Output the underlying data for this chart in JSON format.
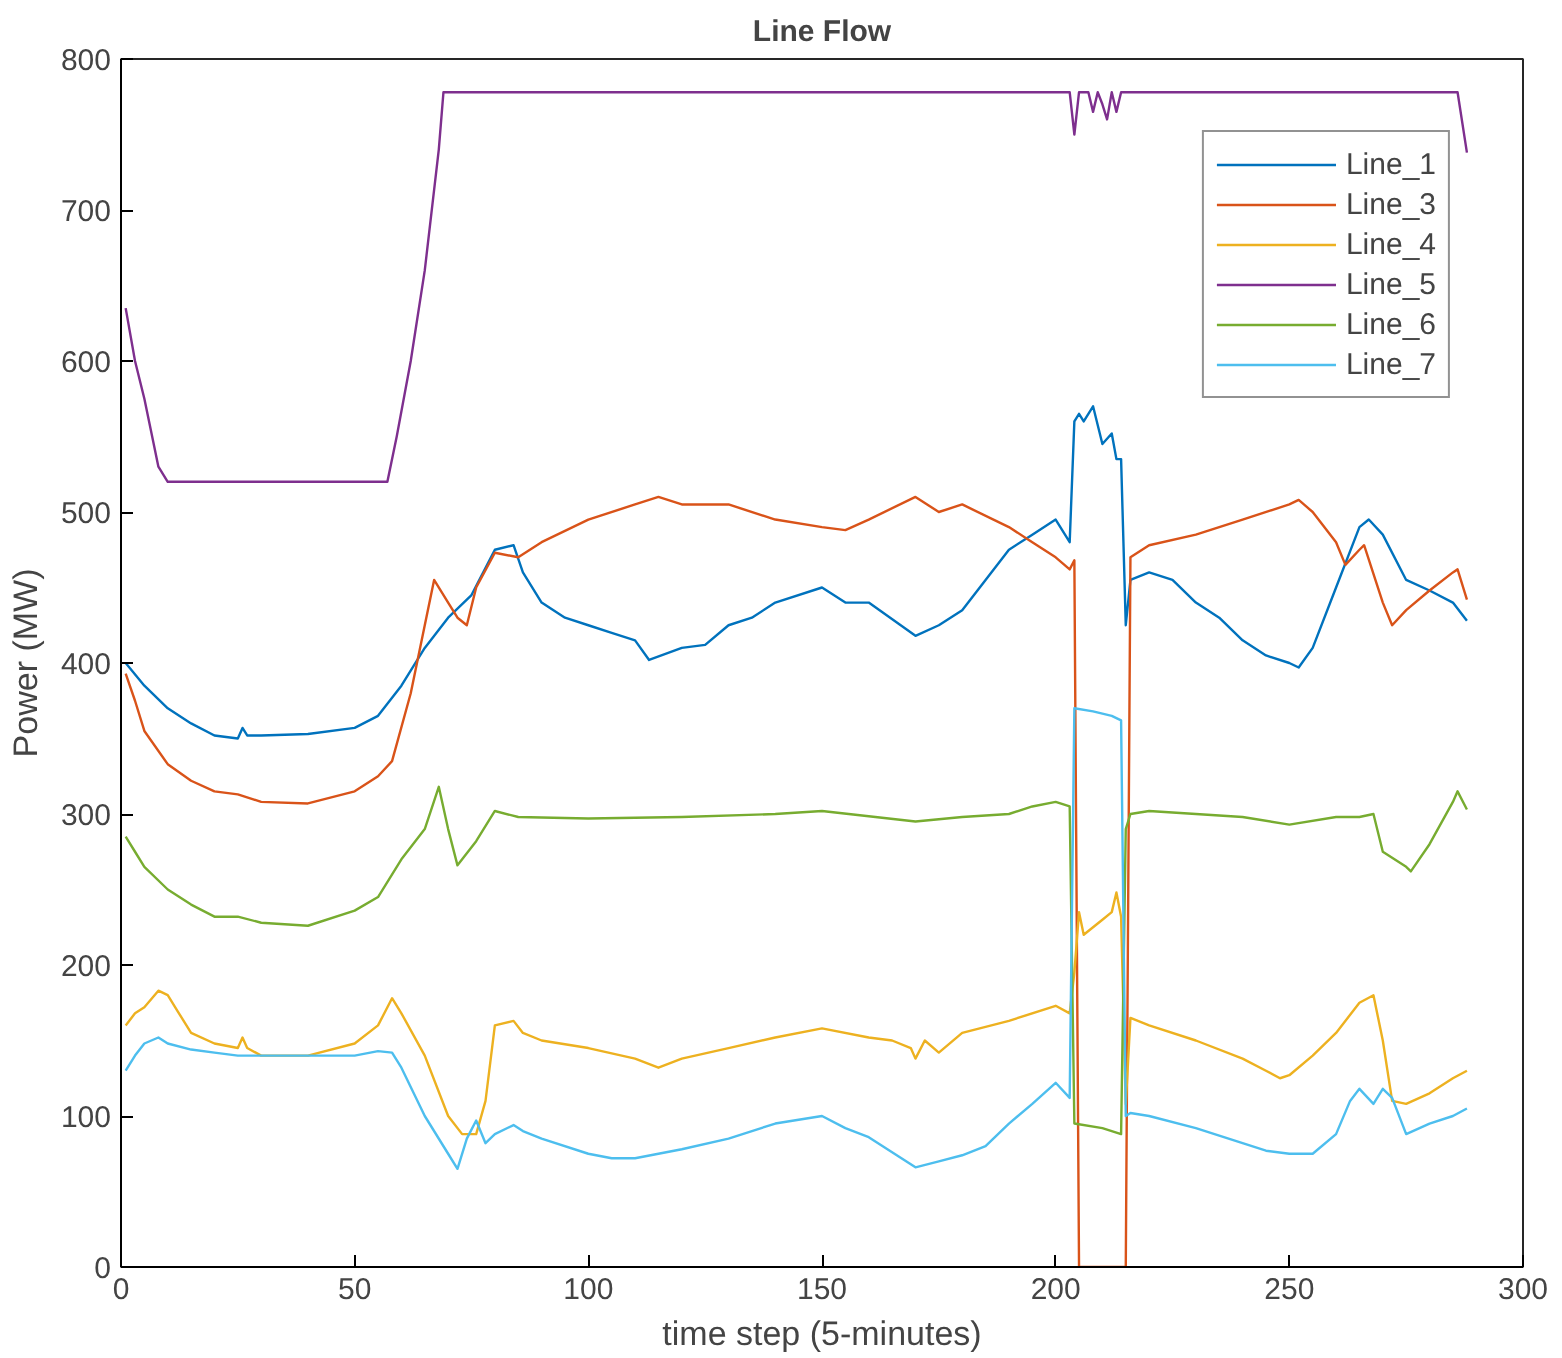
{
  "chart_data": {
    "type": "line",
    "title": "Line Flow",
    "xlabel": "time step (5-minutes)",
    "ylabel": "Power (MW)",
    "xlim": [
      0,
      300
    ],
    "ylim": [
      0,
      800
    ],
    "xticks": [
      0,
      50,
      100,
      150,
      200,
      250,
      300
    ],
    "yticks": [
      0,
      100,
      200,
      300,
      400,
      500,
      600,
      700,
      800
    ],
    "grid": false,
    "legend": "top right",
    "line_style": "solid",
    "marker": "none",
    "series": [
      {
        "name": "Line_1",
        "color": "#0072bd",
        "x": [
          1,
          5,
          10,
          15,
          20,
          25,
          26,
          27,
          30,
          40,
          50,
          55,
          60,
          65,
          70,
          75,
          80,
          84,
          86,
          90,
          95,
          100,
          105,
          110,
          113,
          120,
          125,
          130,
          135,
          140,
          150,
          155,
          160,
          170,
          175,
          180,
          185,
          190,
          195,
          200,
          203,
          204,
          205,
          206,
          208,
          210,
          212,
          213,
          214,
          215,
          216,
          220,
          225,
          230,
          235,
          240,
          245,
          250,
          252,
          255,
          260,
          265,
          267,
          270,
          275,
          280,
          285,
          288
        ],
        "values": [
          400,
          385,
          370,
          360,
          352,
          350,
          357,
          352,
          352,
          353,
          357,
          365,
          385,
          410,
          430,
          445,
          475,
          478,
          460,
          440,
          430,
          425,
          420,
          415,
          402,
          410,
          412,
          425,
          430,
          440,
          450,
          440,
          440,
          418,
          425,
          435,
          455,
          475,
          485,
          495,
          480,
          560,
          565,
          560,
          570,
          545,
          552,
          535,
          535,
          425,
          455,
          460,
          455,
          440,
          430,
          415,
          405,
          400,
          397,
          410,
          450,
          490,
          495,
          485,
          455,
          448,
          440,
          428
        ]
      },
      {
        "name": "Line_3",
        "color": "#d95319",
        "x": [
          1,
          3,
          5,
          10,
          15,
          20,
          25,
          30,
          40,
          50,
          55,
          58,
          62,
          65,
          67,
          70,
          72,
          74,
          76,
          80,
          85,
          90,
          100,
          110,
          115,
          120,
          130,
          140,
          150,
          155,
          160,
          170,
          175,
          180,
          190,
          195,
          200,
          203,
          204,
          205,
          215,
          216,
          220,
          230,
          240,
          250,
          252,
          255,
          260,
          262,
          265,
          266,
          270,
          272,
          275,
          280,
          285,
          286,
          288
        ],
        "values": [
          393,
          375,
          355,
          333,
          322,
          315,
          313,
          308,
          307,
          315,
          325,
          335,
          380,
          425,
          455,
          440,
          430,
          425,
          450,
          473,
          470,
          480,
          495,
          505,
          510,
          505,
          505,
          495,
          490,
          488,
          495,
          510,
          500,
          505,
          490,
          480,
          470,
          462,
          468,
          0,
          0,
          470,
          478,
          485,
          495,
          505,
          508,
          500,
          480,
          465,
          475,
          478,
          440,
          425,
          435,
          448,
          460,
          462,
          442
        ]
      },
      {
        "name": "Line_4",
        "color": "#edb120",
        "x": [
          1,
          3,
          5,
          8,
          10,
          12,
          15,
          20,
          25,
          26,
          27,
          30,
          35,
          40,
          50,
          55,
          58,
          60,
          65,
          70,
          73,
          76,
          78,
          80,
          84,
          86,
          90,
          100,
          110,
          115,
          120,
          130,
          140,
          150,
          160,
          165,
          169,
          170,
          172,
          175,
          180,
          190,
          200,
          203,
          204,
          205,
          206,
          208,
          210,
          212,
          213,
          214,
          215,
          216,
          220,
          230,
          240,
          245,
          248,
          250,
          255,
          260,
          265,
          268,
          270,
          272,
          275,
          280,
          285,
          288
        ],
        "values": [
          160,
          168,
          172,
          183,
          180,
          170,
          155,
          148,
          145,
          152,
          145,
          140,
          140,
          140,
          148,
          160,
          178,
          168,
          140,
          100,
          88,
          88,
          110,
          160,
          163,
          155,
          150,
          145,
          138,
          132,
          138,
          145,
          152,
          158,
          152,
          150,
          145,
          138,
          150,
          142,
          155,
          163,
          173,
          168,
          195,
          235,
          220,
          225,
          230,
          235,
          248,
          232,
          108,
          165,
          160,
          150,
          138,
          130,
          125,
          127,
          140,
          155,
          175,
          180,
          150,
          110,
          108,
          115,
          125,
          130
        ]
      },
      {
        "name": "Line_5",
        "color": "#7e2f8e",
        "x": [
          1,
          3,
          5,
          7,
          8,
          10,
          57,
          59,
          62,
          65,
          68,
          69,
          203,
          204,
          205,
          207,
          208,
          209,
          210,
          211,
          212,
          213,
          214,
          286,
          288
        ],
        "values": [
          635,
          600,
          575,
          545,
          530,
          520,
          520,
          550,
          600,
          660,
          740,
          778,
          778,
          750,
          778,
          778,
          765,
          778,
          770,
          760,
          778,
          765,
          778,
          778,
          738
        ]
      },
      {
        "name": "Line_6",
        "color": "#77ac30",
        "x": [
          1,
          3,
          5,
          10,
          15,
          20,
          25,
          30,
          40,
          50,
          55,
          60,
          65,
          68,
          70,
          72,
          76,
          80,
          85,
          100,
          120,
          140,
          150,
          170,
          180,
          190,
          195,
          200,
          203,
          204,
          210,
          214,
          215,
          216,
          220,
          240,
          250,
          260,
          265,
          268,
          270,
          275,
          276,
          280,
          285,
          286,
          288
        ],
        "values": [
          285,
          275,
          265,
          250,
          240,
          232,
          232,
          228,
          226,
          236,
          245,
          270,
          290,
          318,
          290,
          266,
          282,
          302,
          298,
          297,
          298,
          300,
          302,
          295,
          298,
          300,
          305,
          308,
          305,
          95,
          92,
          88,
          290,
          300,
          302,
          298,
          293,
          298,
          298,
          300,
          275,
          265,
          262,
          280,
          308,
          315,
          303
        ]
      },
      {
        "name": "Line_7",
        "color": "#4dbeee",
        "x": [
          1,
          3,
          5,
          8,
          10,
          15,
          20,
          25,
          30,
          40,
          50,
          55,
          58,
          60,
          65,
          70,
          72,
          74,
          76,
          78,
          80,
          84,
          86,
          90,
          100,
          105,
          110,
          120,
          130,
          140,
          150,
          155,
          160,
          170,
          175,
          180,
          185,
          190,
          195,
          200,
          203,
          204,
          208,
          212,
          214,
          215,
          216,
          220,
          230,
          240,
          245,
          250,
          255,
          260,
          263,
          265,
          268,
          270,
          272,
          275,
          280,
          285,
          288
        ],
        "values": [
          130,
          140,
          148,
          152,
          148,
          144,
          142,
          140,
          140,
          140,
          140,
          143,
          142,
          132,
          100,
          75,
          65,
          85,
          97,
          82,
          88,
          94,
          90,
          85,
          75,
          72,
          72,
          78,
          85,
          95,
          100,
          92,
          86,
          66,
          70,
          74,
          80,
          95,
          108,
          122,
          112,
          370,
          368,
          365,
          362,
          100,
          102,
          100,
          92,
          82,
          77,
          75,
          75,
          88,
          110,
          118,
          108,
          118,
          112,
          88,
          95,
          100,
          105
        ]
      }
    ]
  }
}
